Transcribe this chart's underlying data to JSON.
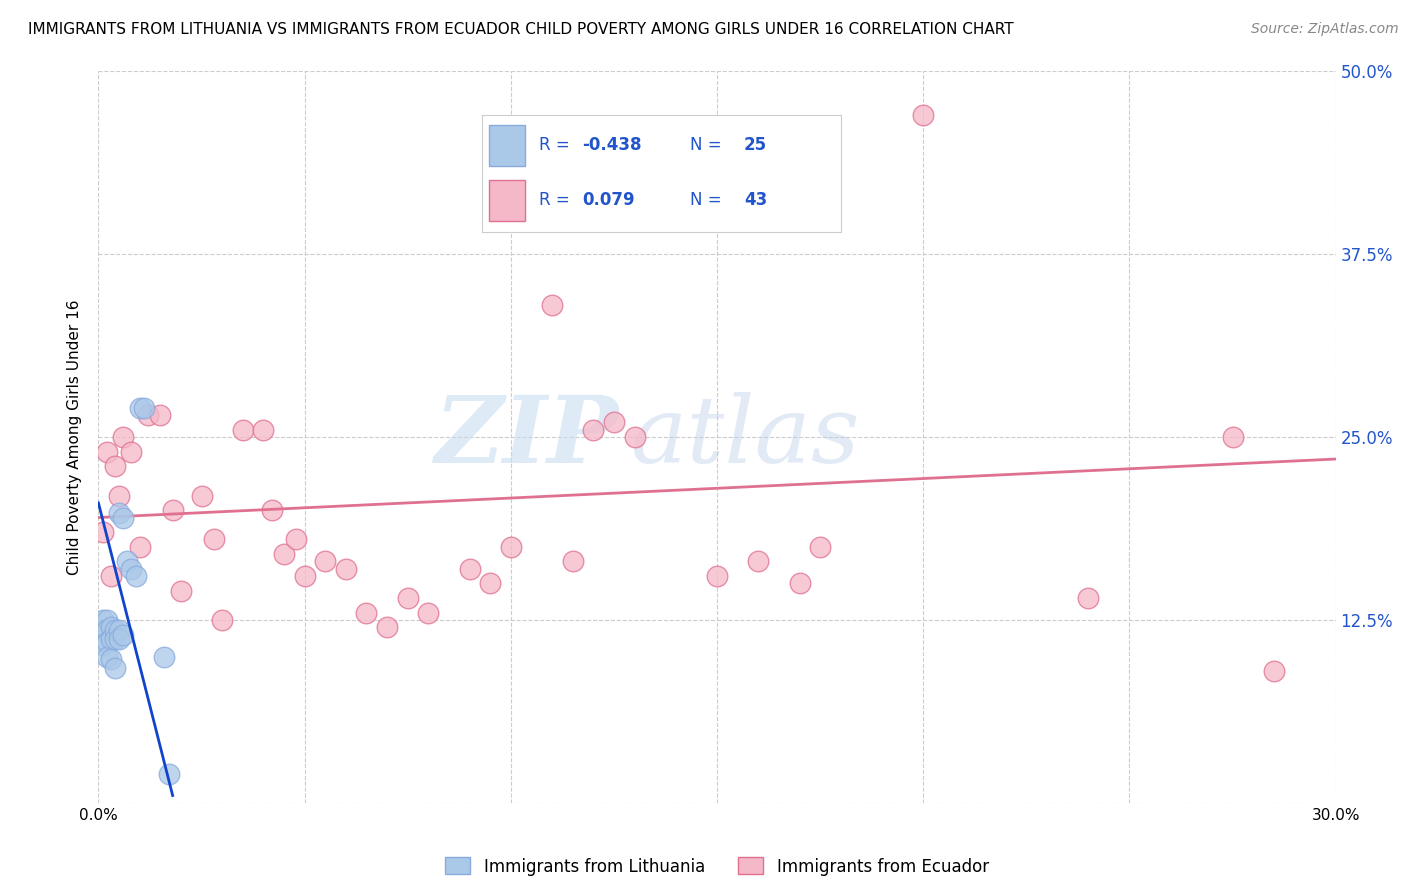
{
  "title": "IMMIGRANTS FROM LITHUANIA VS IMMIGRANTS FROM ECUADOR CHILD POVERTY AMONG GIRLS UNDER 16 CORRELATION CHART",
  "source": "Source: ZipAtlas.com",
  "ylabel": "Child Poverty Among Girls Under 16",
  "xlim": [
    0.0,
    0.3
  ],
  "ylim": [
    0.0,
    0.5
  ],
  "xticks": [
    0.0,
    0.05,
    0.1,
    0.15,
    0.2,
    0.25,
    0.3
  ],
  "yticks": [
    0.0,
    0.125,
    0.25,
    0.375,
    0.5
  ],
  "ytick_labels": [
    "",
    "12.5%",
    "25.0%",
    "37.5%",
    "50.0%"
  ],
  "xtick_labels": [
    "0.0%",
    "",
    "",
    "",
    "",
    "",
    "30.0%"
  ],
  "series": [
    {
      "label": "Immigrants from Lithuania",
      "R": -0.438,
      "N": 25,
      "color": "#aac8e8",
      "edge_color": "#88aadd",
      "line_color": "#1144cc",
      "x": [
        0.001,
        0.001,
        0.001,
        0.002,
        0.002,
        0.002,
        0.002,
        0.003,
        0.003,
        0.003,
        0.004,
        0.004,
        0.004,
        0.005,
        0.005,
        0.005,
        0.006,
        0.006,
        0.007,
        0.008,
        0.009,
        0.01,
        0.011,
        0.016,
        0.017
      ],
      "y": [
        0.125,
        0.118,
        0.108,
        0.125,
        0.118,
        0.11,
        0.1,
        0.12,
        0.112,
        0.098,
        0.118,
        0.112,
        0.092,
        0.118,
        0.112,
        0.198,
        0.115,
        0.195,
        0.165,
        0.16,
        0.155,
        0.27,
        0.27,
        0.1,
        0.02
      ],
      "trendline_x": [
        0.0,
        0.018
      ],
      "trendline_y": [
        0.205,
        0.005
      ]
    },
    {
      "label": "Immigrants from Ecuador",
      "R": 0.079,
      "N": 43,
      "color": "#f5b8c8",
      "edge_color": "#e07090",
      "line_color": "#e07090",
      "x": [
        0.001,
        0.002,
        0.003,
        0.004,
        0.005,
        0.006,
        0.008,
        0.01,
        0.012,
        0.015,
        0.018,
        0.02,
        0.025,
        0.028,
        0.03,
        0.035,
        0.04,
        0.042,
        0.045,
        0.048,
        0.05,
        0.055,
        0.06,
        0.065,
        0.07,
        0.075,
        0.08,
        0.09,
        0.095,
        0.1,
        0.11,
        0.115,
        0.12,
        0.125,
        0.13,
        0.15,
        0.16,
        0.17,
        0.175,
        0.2,
        0.24,
        0.275,
        0.285
      ],
      "y": [
        0.185,
        0.24,
        0.155,
        0.23,
        0.21,
        0.25,
        0.24,
        0.175,
        0.265,
        0.265,
        0.2,
        0.145,
        0.21,
        0.18,
        0.125,
        0.255,
        0.255,
        0.2,
        0.17,
        0.18,
        0.155,
        0.165,
        0.16,
        0.13,
        0.12,
        0.14,
        0.13,
        0.16,
        0.15,
        0.175,
        0.34,
        0.165,
        0.255,
        0.26,
        0.25,
        0.155,
        0.165,
        0.15,
        0.175,
        0.47,
        0.14,
        0.25,
        0.09
      ],
      "trendline_x": [
        0.0,
        0.3
      ],
      "trendline_y": [
        0.195,
        0.235
      ]
    }
  ],
  "watermark_zip": "ZIP",
  "watermark_atlas": "atlas",
  "background_color": "#ffffff",
  "grid_color": "#cccccc",
  "title_fontsize": 11,
  "axis_label_color": "#2255cc",
  "legend_color": "#2255cc"
}
